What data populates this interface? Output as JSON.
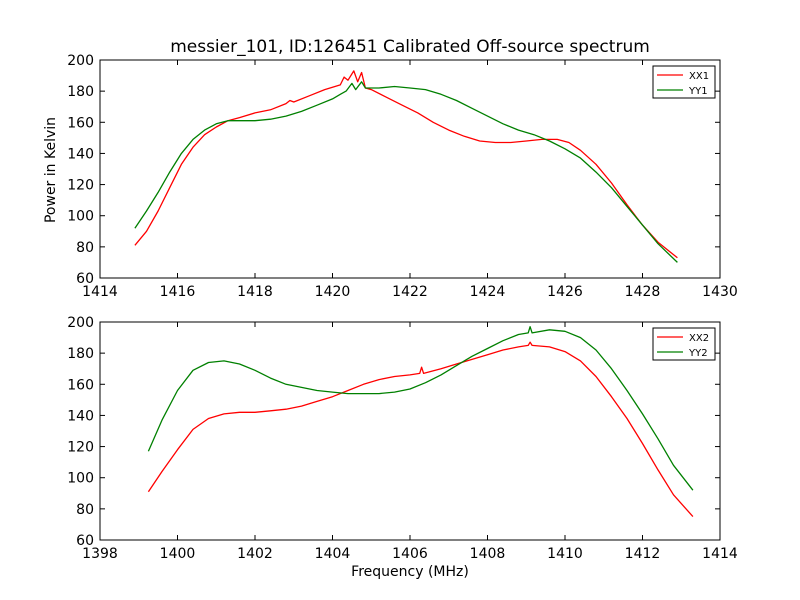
{
  "figure": {
    "title": "messier_101, ID:126451 Calibrated Off-source spectrum",
    "xlabel": "Frequency (MHz)",
    "ylabel": "Power in Kelvin"
  },
  "chart_data": [
    {
      "type": "line",
      "xlim": [
        1414,
        1430
      ],
      "ylim": [
        60,
        200
      ],
      "xticks": [
        1414,
        1416,
        1418,
        1420,
        1422,
        1424,
        1426,
        1428,
        1430
      ],
      "yticks": [
        60,
        80,
        100,
        120,
        140,
        160,
        180,
        200
      ],
      "ylabel": "Power in Kelvin",
      "legend": "top-right",
      "grid": false,
      "series": [
        {
          "name": "XX1",
          "color": "#ff0000",
          "points": [
            [
              1414.9,
              81
            ],
            [
              1415.2,
              90
            ],
            [
              1415.5,
              103
            ],
            [
              1415.8,
              118
            ],
            [
              1416.1,
              133
            ],
            [
              1416.4,
              144
            ],
            [
              1416.7,
              152
            ],
            [
              1417.0,
              157
            ],
            [
              1417.3,
              161
            ],
            [
              1417.6,
              163
            ],
            [
              1418.0,
              166
            ],
            [
              1418.4,
              168
            ],
            [
              1418.8,
              172
            ],
            [
              1418.9,
              174
            ],
            [
              1419.0,
              173
            ],
            [
              1419.4,
              177
            ],
            [
              1419.8,
              181
            ],
            [
              1420.2,
              184
            ],
            [
              1420.3,
              189
            ],
            [
              1420.4,
              187
            ],
            [
              1420.55,
              193
            ],
            [
              1420.65,
              186
            ],
            [
              1420.75,
              192
            ],
            [
              1420.85,
              182
            ],
            [
              1421.0,
              181
            ],
            [
              1421.4,
              176
            ],
            [
              1421.8,
              171
            ],
            [
              1422.2,
              166
            ],
            [
              1422.6,
              160
            ],
            [
              1423.0,
              155
            ],
            [
              1423.4,
              151
            ],
            [
              1423.8,
              148
            ],
            [
              1424.2,
              147
            ],
            [
              1424.6,
              147
            ],
            [
              1425.0,
              148
            ],
            [
              1425.4,
              149
            ],
            [
              1425.8,
              149
            ],
            [
              1426.1,
              147
            ],
            [
              1426.4,
              142
            ],
            [
              1426.8,
              133
            ],
            [
              1427.2,
              121
            ],
            [
              1427.6,
              107
            ],
            [
              1428.0,
              94
            ],
            [
              1428.4,
              83
            ],
            [
              1428.9,
              73
            ]
          ]
        },
        {
          "name": "YY1",
          "color": "#008000",
          "points": [
            [
              1414.9,
              92
            ],
            [
              1415.2,
              103
            ],
            [
              1415.5,
              115
            ],
            [
              1415.8,
              128
            ],
            [
              1416.1,
              140
            ],
            [
              1416.4,
              149
            ],
            [
              1416.7,
              155
            ],
            [
              1417.0,
              159
            ],
            [
              1417.3,
              161
            ],
            [
              1417.6,
              161
            ],
            [
              1418.0,
              161
            ],
            [
              1418.4,
              162
            ],
            [
              1418.8,
              164
            ],
            [
              1419.2,
              167
            ],
            [
              1419.6,
              171
            ],
            [
              1420.0,
              175
            ],
            [
              1420.2,
              178
            ],
            [
              1420.35,
              180
            ],
            [
              1420.5,
              185
            ],
            [
              1420.6,
              181
            ],
            [
              1420.75,
              186
            ],
            [
              1420.85,
              182
            ],
            [
              1421.2,
              182
            ],
            [
              1421.6,
              183
            ],
            [
              1422.0,
              182
            ],
            [
              1422.4,
              181
            ],
            [
              1422.8,
              178
            ],
            [
              1423.2,
              174
            ],
            [
              1423.6,
              169
            ],
            [
              1424.0,
              164
            ],
            [
              1424.4,
              159
            ],
            [
              1424.8,
              155
            ],
            [
              1425.2,
              152
            ],
            [
              1425.6,
              148
            ],
            [
              1426.0,
              143
            ],
            [
              1426.4,
              137
            ],
            [
              1426.8,
              128
            ],
            [
              1427.2,
              118
            ],
            [
              1427.6,
              106
            ],
            [
              1428.0,
              94
            ],
            [
              1428.4,
              82
            ],
            [
              1428.9,
              70
            ]
          ]
        }
      ]
    },
    {
      "type": "line",
      "xlim": [
        1398,
        1414
      ],
      "ylim": [
        60,
        200
      ],
      "xticks": [
        1398,
        1400,
        1402,
        1404,
        1406,
        1408,
        1410,
        1412,
        1414
      ],
      "yticks": [
        60,
        80,
        100,
        120,
        140,
        160,
        180,
        200
      ],
      "xlabel": "Frequency (MHz)",
      "legend": "top-right",
      "grid": false,
      "series": [
        {
          "name": "XX2",
          "color": "#ff0000",
          "points": [
            [
              1399.25,
              91
            ],
            [
              1399.6,
              104
            ],
            [
              1400.0,
              118
            ],
            [
              1400.4,
              131
            ],
            [
              1400.8,
              138
            ],
            [
              1401.2,
              141
            ],
            [
              1401.6,
              142
            ],
            [
              1402.0,
              142
            ],
            [
              1402.4,
              143
            ],
            [
              1402.8,
              144
            ],
            [
              1403.2,
              146
            ],
            [
              1403.6,
              149
            ],
            [
              1404.0,
              152
            ],
            [
              1404.4,
              156
            ],
            [
              1404.8,
              160
            ],
            [
              1405.2,
              163
            ],
            [
              1405.6,
              165
            ],
            [
              1406.0,
              166
            ],
            [
              1406.25,
              167
            ],
            [
              1406.3,
              171
            ],
            [
              1406.35,
              167
            ],
            [
              1406.8,
              170
            ],
            [
              1407.2,
              173
            ],
            [
              1407.6,
              176
            ],
            [
              1408.0,
              179
            ],
            [
              1408.4,
              182
            ],
            [
              1408.8,
              184
            ],
            [
              1409.05,
              185
            ],
            [
              1409.1,
              187
            ],
            [
              1409.15,
              185
            ],
            [
              1409.6,
              184
            ],
            [
              1410.0,
              181
            ],
            [
              1410.4,
              175
            ],
            [
              1410.8,
              165
            ],
            [
              1411.2,
              152
            ],
            [
              1411.6,
              138
            ],
            [
              1412.0,
              122
            ],
            [
              1412.4,
              105
            ],
            [
              1412.8,
              89
            ],
            [
              1413.3,
              75
            ]
          ]
        },
        {
          "name": "YY2",
          "color": "#008000",
          "points": [
            [
              1399.25,
              117
            ],
            [
              1399.6,
              137
            ],
            [
              1400.0,
              156
            ],
            [
              1400.4,
              169
            ],
            [
              1400.8,
              174
            ],
            [
              1401.2,
              175
            ],
            [
              1401.6,
              173
            ],
            [
              1402.0,
              169
            ],
            [
              1402.4,
              164
            ],
            [
              1402.8,
              160
            ],
            [
              1403.2,
              158
            ],
            [
              1403.6,
              156
            ],
            [
              1404.0,
              155
            ],
            [
              1404.4,
              154
            ],
            [
              1404.8,
              154
            ],
            [
              1405.2,
              154
            ],
            [
              1405.6,
              155
            ],
            [
              1406.0,
              157
            ],
            [
              1406.4,
              161
            ],
            [
              1406.8,
              166
            ],
            [
              1407.2,
              172
            ],
            [
              1407.6,
              178
            ],
            [
              1408.0,
              183
            ],
            [
              1408.4,
              188
            ],
            [
              1408.8,
              192
            ],
            [
              1409.05,
              193
            ],
            [
              1409.1,
              197
            ],
            [
              1409.15,
              193
            ],
            [
              1409.6,
              195
            ],
            [
              1410.0,
              194
            ],
            [
              1410.4,
              190
            ],
            [
              1410.8,
              182
            ],
            [
              1411.2,
              170
            ],
            [
              1411.6,
              156
            ],
            [
              1412.0,
              141
            ],
            [
              1412.4,
              125
            ],
            [
              1412.8,
              108
            ],
            [
              1413.3,
              92
            ]
          ]
        }
      ]
    }
  ]
}
